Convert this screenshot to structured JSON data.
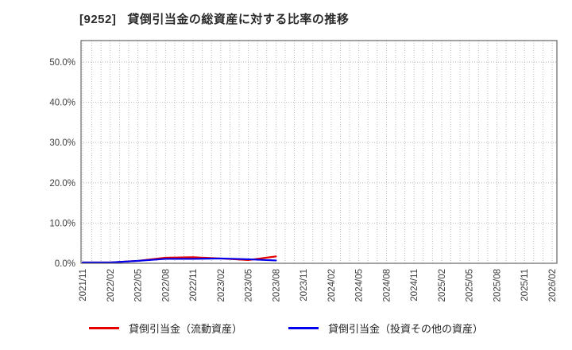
{
  "header": {
    "code": "[9252]",
    "title": "貸倒引当金の総資産に対する比率の推移"
  },
  "chart_data": {
    "type": "line",
    "title": "[9252] 貸倒引当金の総資産に対する比率の推移",
    "categories": [
      "2021/11",
      "2022/02",
      "2022/05",
      "2022/08",
      "2022/11",
      "2023/02",
      "2023/05",
      "2023/08",
      "2023/11",
      "2024/02",
      "2024/05",
      "2024/08",
      "2024/11",
      "2025/02",
      "2025/05",
      "2025/08",
      "2025/11",
      "2026/02"
    ],
    "y_tick_labels": [
      "0.0%",
      "10.0%",
      "20.0%",
      "30.0%",
      "40.0%",
      "50.0%"
    ],
    "yticks": [
      0,
      10,
      20,
      30,
      40,
      50
    ],
    "ylim": [
      0,
      55.4
    ],
    "xlabel": "",
    "ylabel": "",
    "grid": true,
    "legend_position": "bottom",
    "x_points": [
      "2021/11",
      "2022/02",
      "2022/05",
      "2022/08",
      "2022/11",
      "2023/02",
      "2023/05",
      "2023/08"
    ],
    "series": [
      {
        "name": "貸倒引当金（流動資産）",
        "color": "#e60000",
        "values": [
          0.2,
          0.2,
          0.6,
          1.4,
          1.5,
          1.2,
          0.8,
          1.7
        ]
      },
      {
        "name": "貸倒引当金（投資その他の資産）",
        "color": "#0000ee",
        "values": [
          0.2,
          0.2,
          0.6,
          1.1,
          1.1,
          1.2,
          1.0,
          0.7
        ]
      }
    ],
    "colors": {
      "grid": "#b5b5b5",
      "border": "#666666",
      "tick_text": "#3d3d3d"
    }
  }
}
